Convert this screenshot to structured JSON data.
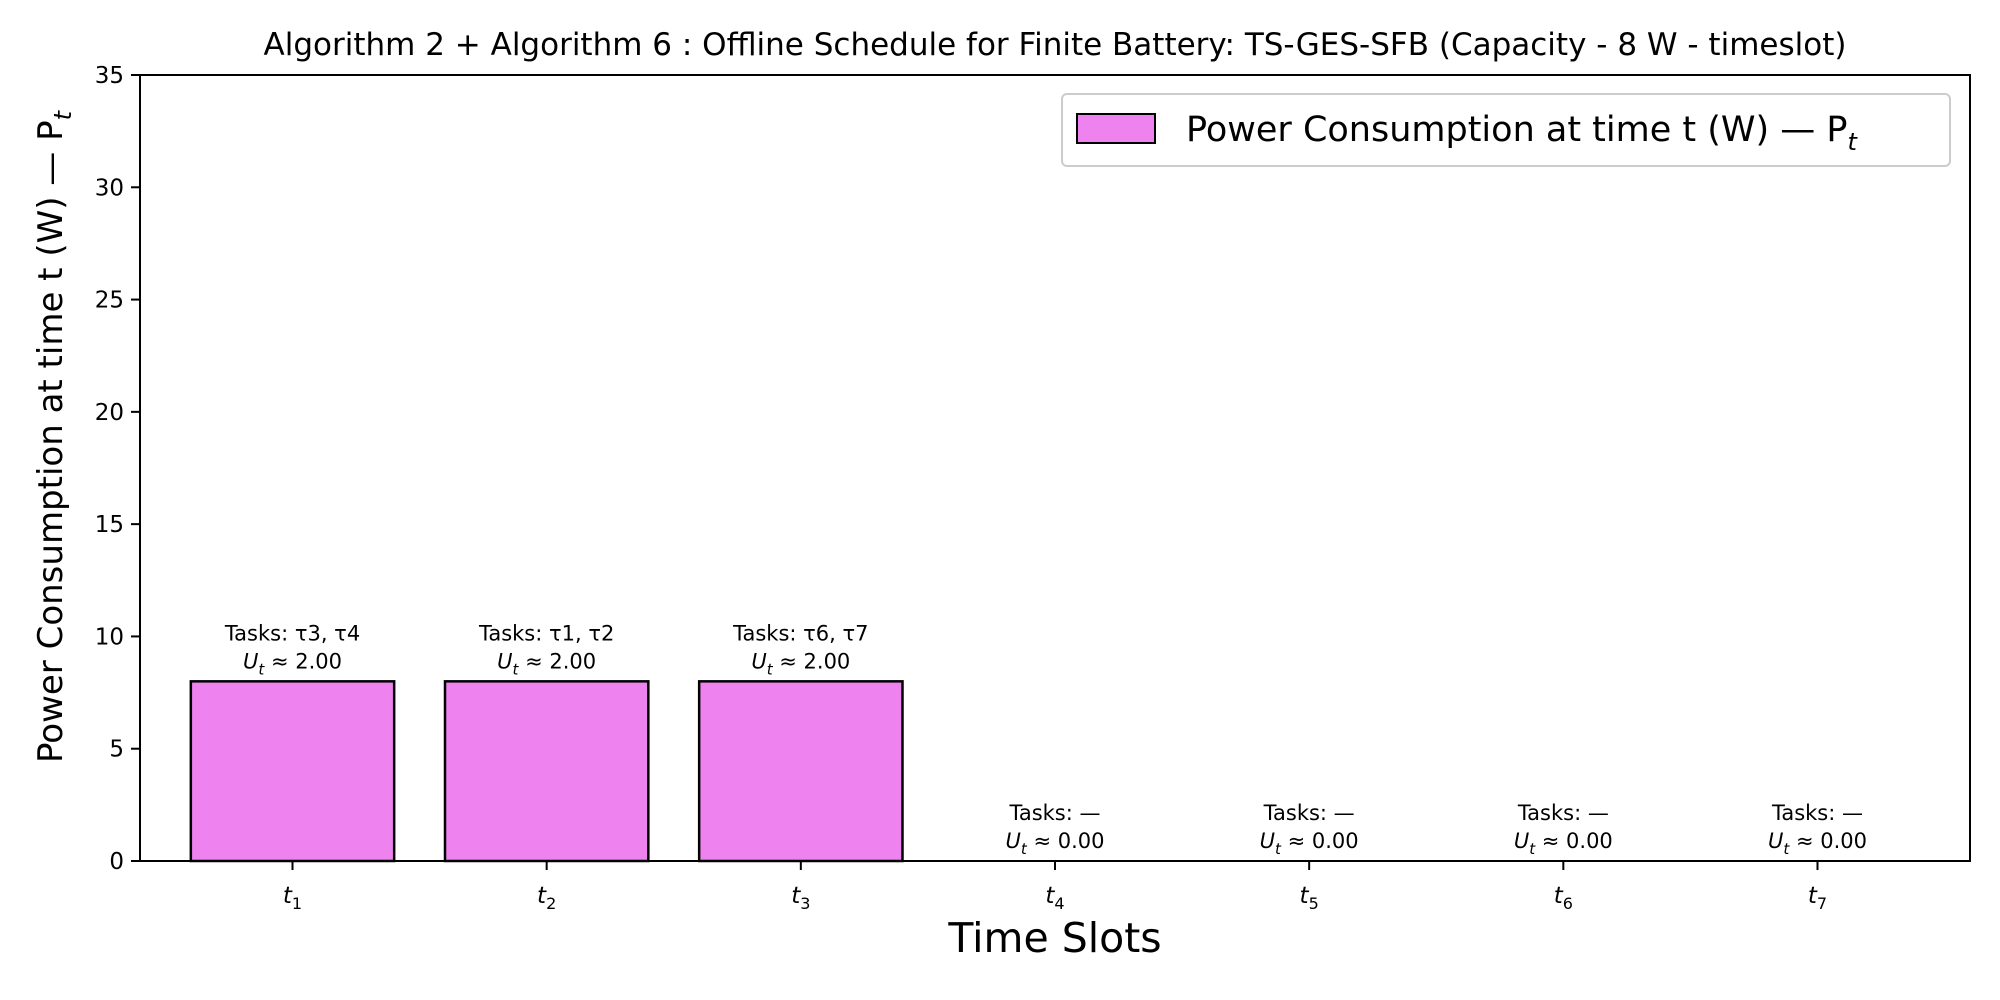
{
  "chart_data": {
    "type": "bar",
    "title": "Algorithm 2 + Algorithm 6 : Offline Schedule for Finite Battery: TS-GES-SFB (Capacity - 8 W - timeslot)",
    "xlabel": "Time Slots",
    "ylabel": "Power Consumption at time t (W) — P",
    "ylabel_subscript": "t",
    "categories": [
      {
        "base": "t",
        "sub": "1"
      },
      {
        "base": "t",
        "sub": "2"
      },
      {
        "base": "t",
        "sub": "3"
      },
      {
        "base": "t",
        "sub": "4"
      },
      {
        "base": "t",
        "sub": "5"
      },
      {
        "base": "t",
        "sub": "6"
      },
      {
        "base": "t",
        "sub": "7"
      }
    ],
    "values": [
      8,
      8,
      8,
      0,
      0,
      0,
      0
    ],
    "annotations": [
      {
        "tasks": "Tasks: τ3, τ4",
        "util": "2.00"
      },
      {
        "tasks": "Tasks: τ1, τ2",
        "util": "2.00"
      },
      {
        "tasks": "Tasks: τ6, τ7",
        "util": "2.00"
      },
      {
        "tasks": "Tasks: —",
        "util": "0.00"
      },
      {
        "tasks": "Tasks: —",
        "util": "0.00"
      },
      {
        "tasks": "Tasks: —",
        "util": "0.00"
      },
      {
        "tasks": "Tasks: —",
        "util": "0.00"
      }
    ],
    "util_symbol": "U",
    "util_subscript": "t",
    "util_relation": "≈",
    "ylim": [
      0,
      35
    ],
    "yticks": [
      0,
      5,
      10,
      15,
      20,
      25,
      30,
      35
    ],
    "legend": {
      "label": "Power Consumption at time t (W) — P",
      "label_subscript": "t",
      "position": "top-right"
    },
    "grid": false,
    "colors": {
      "bar_fill": "#ee82ee",
      "bar_edge": "#000000"
    }
  }
}
